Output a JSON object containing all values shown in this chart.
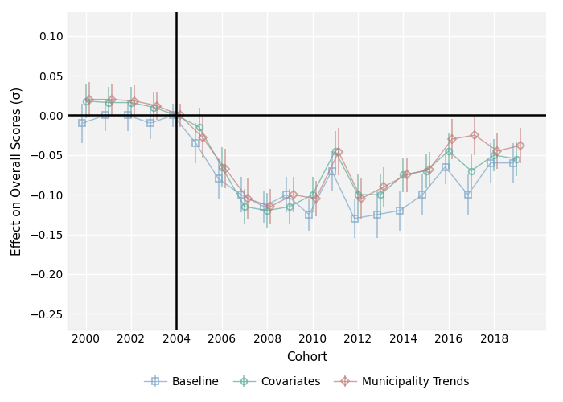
{
  "xlabel": "Cohort",
  "ylabel": "Effect on Overall Scores (σ)",
  "ylim": [
    -0.27,
    0.13
  ],
  "xlim": [
    1999.2,
    2020.3
  ],
  "vline_x": 2004,
  "hline_y": 0.0,
  "xticks": [
    2000,
    2002,
    2004,
    2006,
    2008,
    2010,
    2012,
    2014,
    2016,
    2018
  ],
  "yticks": [
    0.1,
    0.05,
    0.0,
    -0.05,
    -0.1,
    -0.15,
    -0.2,
    -0.25
  ],
  "baseline_color": "#7aa6c8",
  "covariates_color": "#5aab9a",
  "muni_trends_color": "#c47b78",
  "line_alpha": 0.7,
  "baseline_x": [
    2000,
    2001,
    2002,
    2003,
    2004,
    2005,
    2006,
    2007,
    2008,
    2009,
    2010,
    2011,
    2012,
    2013,
    2014,
    2015,
    2016,
    2017,
    2018,
    2019
  ],
  "baseline_y": [
    -0.01,
    0.0,
    0.0,
    -0.01,
    0.0,
    -0.035,
    -0.08,
    -0.1,
    -0.115,
    -0.1,
    -0.125,
    -0.07,
    -0.13,
    -0.125,
    -0.12,
    -0.1,
    -0.065,
    -0.1,
    -0.06,
    -0.06
  ],
  "baseline_yerr": [
    0.025,
    0.02,
    0.02,
    0.02,
    0.015,
    0.025,
    0.025,
    0.022,
    0.02,
    0.022,
    0.02,
    0.025,
    0.025,
    0.03,
    0.025,
    0.025,
    0.022,
    0.025,
    0.025,
    0.025
  ],
  "covariates_x": [
    2000,
    2001,
    2002,
    2003,
    2004,
    2005,
    2006,
    2007,
    2008,
    2009,
    2010,
    2011,
    2012,
    2013,
    2014,
    2015,
    2016,
    2017,
    2018,
    2019
  ],
  "covariates_y": [
    0.018,
    0.016,
    0.016,
    0.01,
    0.0,
    -0.015,
    -0.065,
    -0.115,
    -0.12,
    -0.115,
    -0.1,
    -0.045,
    -0.1,
    -0.1,
    -0.075,
    -0.07,
    -0.045,
    -0.07,
    -0.05,
    -0.055
  ],
  "covariates_yerr": [
    0.022,
    0.02,
    0.02,
    0.02,
    0.015,
    0.025,
    0.025,
    0.022,
    0.022,
    0.022,
    0.022,
    0.025,
    0.025,
    0.025,
    0.022,
    0.022,
    0.022,
    0.022,
    0.02,
    0.022
  ],
  "muni_x": [
    2000,
    2001,
    2002,
    2003,
    2004,
    2005,
    2006,
    2007,
    2008,
    2009,
    2010,
    2011,
    2012,
    2013,
    2014,
    2015,
    2016,
    2017,
    2018,
    2019
  ],
  "muni_y": [
    0.02,
    0.02,
    0.018,
    0.012,
    0.0,
    -0.028,
    -0.067,
    -0.105,
    -0.115,
    -0.1,
    -0.105,
    -0.046,
    -0.105,
    -0.09,
    -0.075,
    -0.068,
    -0.03,
    -0.025,
    -0.045,
    -0.038
  ],
  "muni_yerr": [
    0.022,
    0.02,
    0.02,
    0.018,
    0.015,
    0.025,
    0.025,
    0.025,
    0.022,
    0.022,
    0.022,
    0.03,
    0.025,
    0.025,
    0.022,
    0.022,
    0.025,
    0.025,
    0.022,
    0.022
  ],
  "background_color": "#ffffff",
  "plot_bg_color": "#f2f2f2",
  "grid_color": "#ffffff",
  "legend_labels": [
    "Baseline",
    "Covariates",
    "Municipality Trends"
  ]
}
